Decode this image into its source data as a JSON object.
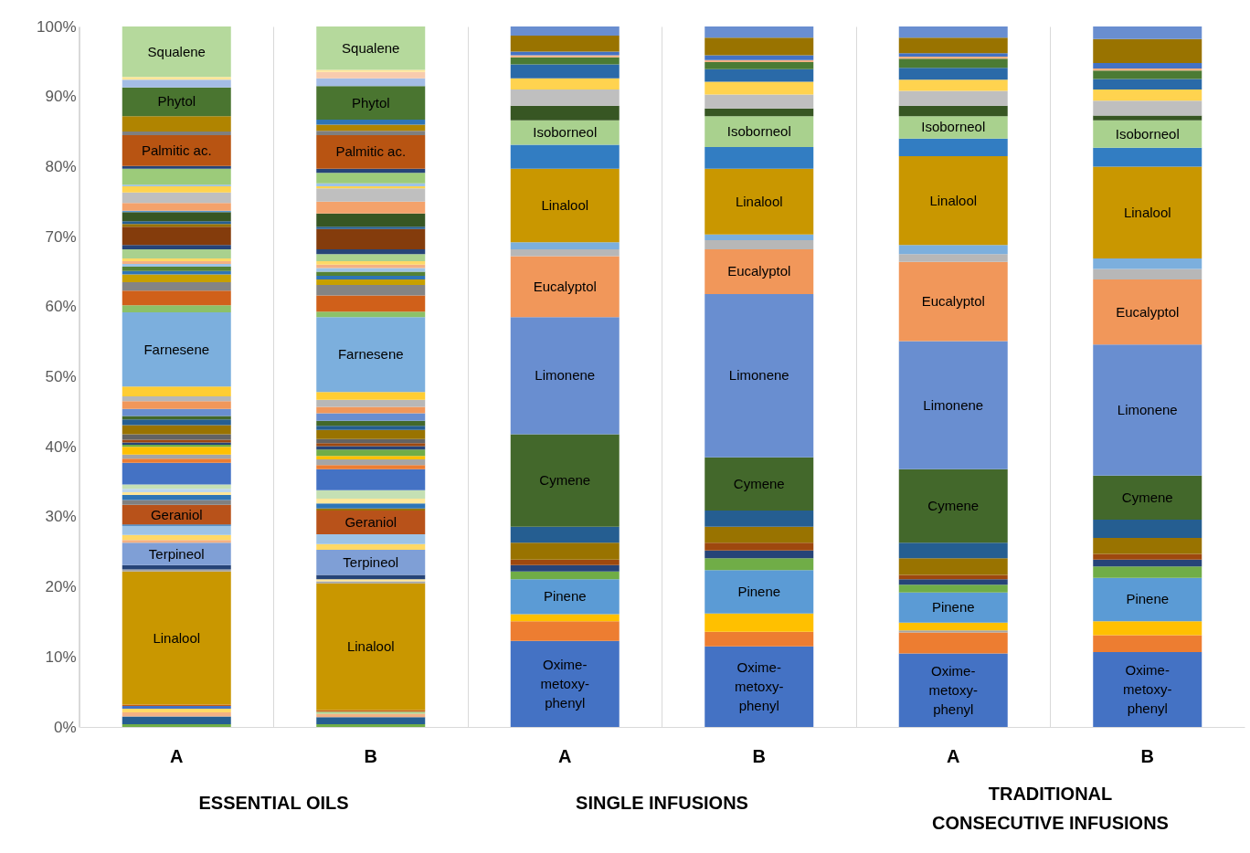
{
  "chart_data": {
    "type": "bar",
    "stacked": true,
    "grid": "x",
    "categories": [
      "A",
      "B",
      "A",
      "B",
      "A",
      "B"
    ],
    "ylim": [
      0,
      100
    ],
    "yticks": [
      {
        "value": 0,
        "label": "0%"
      },
      {
        "value": 10,
        "label": "10%"
      },
      {
        "value": 20,
        "label": "20%"
      },
      {
        "value": 30,
        "label": "30%"
      },
      {
        "value": 40,
        "label": "40%"
      },
      {
        "value": 50,
        "label": "50%"
      },
      {
        "value": 60,
        "label": "60%"
      },
      {
        "value": 70,
        "label": "70%"
      },
      {
        "value": 80,
        "label": "80%"
      },
      {
        "value": 90,
        "label": "90%"
      },
      {
        "value": 100,
        "label": "100%"
      }
    ],
    "annotations": [
      "ESSENTIAL OILS",
      "SINGLE INFUSIONS",
      "TRADITIONAL CONSECUTIVE INFUSIONS"
    ],
    "series": [
      {
        "color": "#70ad47",
        "values": [
          0.4,
          0.4,
          null,
          null,
          null,
          null
        ]
      },
      {
        "color": "#255e91",
        "values": [
          1.1,
          1.0,
          null,
          null,
          null,
          null
        ]
      },
      {
        "color": "#f4b183",
        "values": [
          0.6,
          0.5,
          null,
          null,
          null,
          null
        ]
      },
      {
        "color": "#ffd966",
        "values": [
          0.5,
          null,
          null,
          null,
          null,
          null
        ]
      },
      {
        "color": "#a9d18e",
        "values": [
          null,
          0.3,
          null,
          null,
          null,
          null
        ]
      },
      {
        "color": "#4472c4",
        "values": [
          0.4,
          null,
          null,
          null,
          null,
          null
        ]
      },
      {
        "color": "#c55a11",
        "values": [
          0.2,
          0.2,
          null,
          null,
          null,
          null
        ]
      },
      {
        "name": "Linalool",
        "color": "#c99700",
        "values": [
          19.0,
          18.1,
          null,
          null,
          null,
          null
        ]
      },
      {
        "color": "#a5a5a5",
        "values": [
          0.3,
          0.3,
          null,
          null,
          null,
          null
        ]
      },
      {
        "color": "#ffe699",
        "values": [
          null,
          0.3,
          null,
          null,
          null,
          null
        ]
      },
      {
        "color": "#264478",
        "values": [
          0.6,
          0.6,
          null,
          null,
          null,
          null
        ]
      },
      {
        "name": "Terpineol",
        "color": "#7f9fd6",
        "values": [
          3.2,
          3.6,
          null,
          null,
          null,
          null
        ]
      },
      {
        "color": "#f4b183",
        "values": [
          0.4,
          null,
          null,
          null,
          null,
          null
        ]
      },
      {
        "color": "#ffd966",
        "values": [
          0.7,
          0.8,
          null,
          null,
          null,
          null
        ]
      },
      {
        "color": "#9dc3e6",
        "values": [
          1.3,
          1.4,
          null,
          null,
          null,
          null
        ]
      },
      {
        "color": "#2e75b6",
        "values": [
          0.2,
          null,
          null,
          null,
          null,
          null
        ]
      },
      {
        "name": "Geraniol",
        "color": "#b8521a",
        "values": [
          2.8,
          3.4,
          null,
          null,
          null,
          null
        ]
      },
      {
        "color": "#808080",
        "values": [
          0.7,
          null,
          null,
          null,
          null,
          null
        ]
      },
      {
        "color": "#997300",
        "values": [
          null,
          0.3,
          null,
          null,
          null,
          null
        ]
      },
      {
        "color": "#2e75b6",
        "values": [
          0.7,
          0.7,
          null,
          null,
          null,
          null
        ]
      },
      {
        "color": "#ffe699",
        "values": [
          0.4,
          0.7,
          null,
          null,
          null,
          null
        ]
      },
      {
        "color": "#bdd7ee",
        "values": [
          0.5,
          null,
          null,
          null,
          null,
          null
        ]
      },
      {
        "color": "#c5e0b4",
        "values": [
          0.6,
          1.2,
          null,
          null,
          null,
          null
        ]
      },
      {
        "color": "#4472c4",
        "values": [
          3.1,
          3.0,
          null,
          null,
          null,
          null
        ]
      },
      {
        "color": "#ed7d31",
        "values": [
          0.6,
          0.6,
          null,
          null,
          null,
          null
        ]
      },
      {
        "color": "#a5a5a5",
        "values": [
          0.6,
          0.8,
          null,
          null,
          null,
          null
        ]
      },
      {
        "color": "#ffc000",
        "values": [
          1.1,
          0.5,
          null,
          null,
          null,
          null
        ]
      },
      {
        "color": "#70ad47",
        "values": [
          0.3,
          0.9,
          null,
          null,
          null,
          null
        ]
      },
      {
        "color": "#264478",
        "values": [
          0.3,
          0.5,
          null,
          null,
          null,
          null
        ]
      },
      {
        "color": "#9e480e",
        "values": [
          0.4,
          0.4,
          null,
          null,
          null,
          null
        ]
      },
      {
        "color": "#636363",
        "values": [
          0.8,
          0.6,
          null,
          null,
          null,
          null
        ]
      },
      {
        "color": "#997300",
        "values": [
          1.3,
          1.3,
          null,
          null,
          null,
          null
        ]
      },
      {
        "color": "#255e91",
        "values": [
          0.8,
          0.6,
          null,
          null,
          null,
          null
        ]
      },
      {
        "color": "#43682b",
        "values": [
          0.5,
          0.7,
          null,
          null,
          null,
          null
        ]
      },
      {
        "color": "#698ed0",
        "values": [
          1.0,
          1.1,
          null,
          null,
          null,
          null
        ]
      },
      {
        "color": "#f1975a",
        "values": [
          1.1,
          0.9,
          null,
          null,
          null,
          null
        ]
      },
      {
        "color": "#b7b7b7",
        "values": [
          0.7,
          1.0,
          null,
          null,
          null,
          null
        ]
      },
      {
        "color": "#ffcd33",
        "values": [
          1.4,
          1.1,
          null,
          null,
          null,
          null
        ]
      },
      {
        "name": "Farnesene",
        "color": "#7cafdd",
        "values": [
          10.6,
          10.7,
          null,
          null,
          null,
          null
        ]
      },
      {
        "color": "#8cc168",
        "values": [
          1.0,
          0.8,
          null,
          null,
          null,
          null
        ]
      },
      {
        "color": "#d0601a",
        "values": [
          2.1,
          2.3,
          null,
          null,
          null,
          null
        ]
      },
      {
        "color": "#848484",
        "values": [
          1.2,
          1.5,
          null,
          null,
          null,
          null
        ]
      },
      {
        "color": "#c7a000",
        "values": [
          1.1,
          0.8,
          null,
          null,
          null,
          null
        ]
      },
      {
        "color": "#2e75b6",
        "values": [
          0.5,
          0.5,
          null,
          null,
          null,
          null
        ]
      },
      {
        "color": "#548235",
        "values": [
          0.6,
          0.6,
          null,
          null,
          null,
          null
        ]
      },
      {
        "color": "#9dc3e6",
        "values": [
          0.4,
          0.5,
          null,
          null,
          null,
          null
        ]
      },
      {
        "color": "#f4b183",
        "values": [
          0.4,
          0.5,
          null,
          null,
          null,
          null
        ]
      },
      {
        "color": "#ffd966",
        "values": [
          0.4,
          0.5,
          null,
          null,
          null,
          null
        ]
      },
      {
        "color": "#a9d18e",
        "values": [
          1.3,
          1.0,
          null,
          null,
          null,
          null
        ]
      },
      {
        "color": "#264478",
        "values": [
          0.6,
          0.7,
          null,
          null,
          null,
          null
        ]
      },
      {
        "color": "#843c0c",
        "values": [
          2.6,
          2.9,
          null,
          null,
          null,
          null
        ]
      },
      {
        "color": "#997300",
        "values": [
          0.4,
          null,
          null,
          null,
          null,
          null
        ]
      },
      {
        "color": "#255e91",
        "values": [
          0.4,
          0.3,
          null,
          null,
          null,
          null
        ]
      },
      {
        "color": "#375623",
        "values": [
          1.3,
          1.9,
          null,
          null,
          null,
          null
        ]
      },
      {
        "color": "#5b9bd5",
        "values": [
          0.2,
          null,
          null,
          null,
          null,
          null
        ]
      },
      {
        "color": "#f4a26b",
        "values": [
          1.1,
          1.7,
          null,
          null,
          null,
          null
        ]
      },
      {
        "color": "#bfbfbf",
        "values": [
          1.5,
          1.9,
          null,
          null,
          null,
          null
        ]
      },
      {
        "color": "#ffd34f",
        "values": [
          0.9,
          0.3,
          null,
          null,
          null,
          null
        ]
      },
      {
        "color": "#9dc3e6",
        "values": [
          0.2,
          0.4,
          null,
          null,
          null,
          null
        ]
      },
      {
        "color": "#9ccb7a",
        "values": [
          2.3,
          1.5,
          null,
          null,
          null,
          null
        ]
      },
      {
        "color": "#264478",
        "values": [
          0.4,
          0.6,
          null,
          null,
          null,
          null
        ]
      },
      {
        "name": "Palmitic ac.",
        "color": "#b85412",
        "values": [
          4.4,
          4.8,
          null,
          null,
          null,
          null
        ]
      },
      {
        "color": "#7f7f7f",
        "values": [
          0.5,
          0.6,
          null,
          null,
          null,
          null
        ]
      },
      {
        "color": "#b08400",
        "values": [
          2.2,
          0.9,
          null,
          null,
          null,
          null
        ]
      },
      {
        "color": "#2e75b6",
        "values": [
          null,
          0.7,
          null,
          null,
          null,
          null
        ]
      },
      {
        "name": "Phytol",
        "color": "#4a7530",
        "values": [
          4.1,
          4.8,
          null,
          null,
          null,
          null
        ]
      },
      {
        "color": "#a4bde5",
        "values": [
          1.1,
          1.1,
          null,
          null,
          null,
          null
        ]
      },
      {
        "color": "#f8cbad",
        "values": [
          null,
          0.9,
          null,
          null,
          null,
          null
        ]
      },
      {
        "color": "#ffe699",
        "values": [
          0.4,
          0.3,
          null,
          null,
          null,
          null
        ]
      },
      {
        "name": "Squalene",
        "color": "#b5d99c",
        "values": [
          7.2,
          6.2,
          null,
          null,
          null,
          null
        ]
      },
      {
        "name": "Oxime-metoxy-phenyl",
        "color": "#4472c4",
        "values": [
          null,
          null,
          12.3,
          11.5,
          10.5,
          10.7
        ]
      },
      {
        "color": "#ed7d31",
        "values": [
          null,
          null,
          2.8,
          2.1,
          3.0,
          2.4
        ]
      },
      {
        "color": "#a5a5a5",
        "values": [
          null,
          null,
          null,
          null,
          0.3,
          null
        ]
      },
      {
        "color": "#ffc000",
        "values": [
          null,
          null,
          1.0,
          2.6,
          1.1,
          2.0
        ]
      },
      {
        "name": "Pinene",
        "color": "#5b9bd5",
        "values": [
          null,
          null,
          5.0,
          6.2,
          4.3,
          6.2
        ]
      },
      {
        "color": "#70ad47",
        "values": [
          null,
          null,
          1.1,
          1.7,
          1.1,
          1.6
        ]
      },
      {
        "color": "#264478",
        "values": [
          null,
          null,
          0.9,
          1.1,
          0.8,
          1.0
        ]
      },
      {
        "color": "#9e480e",
        "values": [
          null,
          null,
          0.8,
          1.1,
          0.6,
          0.8
        ]
      },
      {
        "color": "#997300",
        "values": [
          null,
          null,
          2.4,
          2.3,
          2.4,
          2.3
        ]
      },
      {
        "color": "#255e91",
        "values": [
          null,
          null,
          2.3,
          2.3,
          2.2,
          2.6
        ]
      },
      {
        "name": "Cymene",
        "color": "#43682b",
        "values": [
          null,
          null,
          13.2,
          7.6,
          10.5,
          6.3
        ]
      },
      {
        "name": "Limonene",
        "color": "#698ed0",
        "values": [
          null,
          null,
          16.7,
          23.3,
          18.3,
          18.7
        ]
      },
      {
        "name": "Eucalyptol",
        "color": "#f1975a",
        "values": [
          null,
          null,
          8.7,
          6.4,
          11.3,
          9.3
        ]
      },
      {
        "color": "#b7b7b7",
        "values": [
          null,
          null,
          1.0,
          1.3,
          1.1,
          1.5
        ]
      },
      {
        "color": "#7cafdd",
        "values": [
          null,
          null,
          1.0,
          0.8,
          1.3,
          1.5
        ]
      },
      {
        "name": "Linalool",
        "color": "#c99700",
        "values": [
          null,
          null,
          10.5,
          9.4,
          12.7,
          13.1
        ]
      },
      {
        "color": "#327dc2",
        "values": [
          null,
          null,
          3.4,
          3.1,
          2.5,
          2.7
        ]
      },
      {
        "name": "Isoborneol",
        "color": "#a9d18e",
        "values": [
          null,
          null,
          3.5,
          4.4,
          3.2,
          3.9
        ]
      },
      {
        "color": "#375623",
        "values": [
          null,
          null,
          2.1,
          1.1,
          1.5,
          0.7
        ]
      },
      {
        "color": "#bfbfbf",
        "values": [
          null,
          null,
          2.3,
          2.0,
          2.1,
          2.1
        ]
      },
      {
        "color": "#ffd34f",
        "values": [
          null,
          null,
          1.6,
          1.8,
          1.6,
          1.6
        ]
      },
      {
        "color": "#2a6aa8",
        "values": [
          null,
          null,
          2.0,
          1.8,
          1.7,
          1.5
        ]
      },
      {
        "color": "#4b7b34",
        "values": [
          null,
          null,
          1.0,
          1.0,
          1.3,
          1.2
        ]
      },
      {
        "color": "#f4b183",
        "values": [
          null,
          null,
          0.3,
          0.3,
          0.3,
          0.3
        ]
      },
      {
        "color": "#4472c4",
        "values": [
          null,
          null,
          0.5,
          0.7,
          0.5,
          0.8
        ]
      },
      {
        "color": "#997300",
        "values": [
          null,
          null,
          2.3,
          2.5,
          2.2,
          3.4
        ]
      },
      {
        "color": "#698ed0",
        "values": [
          null,
          null,
          1.3,
          1.6,
          1.6,
          1.8
        ]
      }
    ]
  }
}
